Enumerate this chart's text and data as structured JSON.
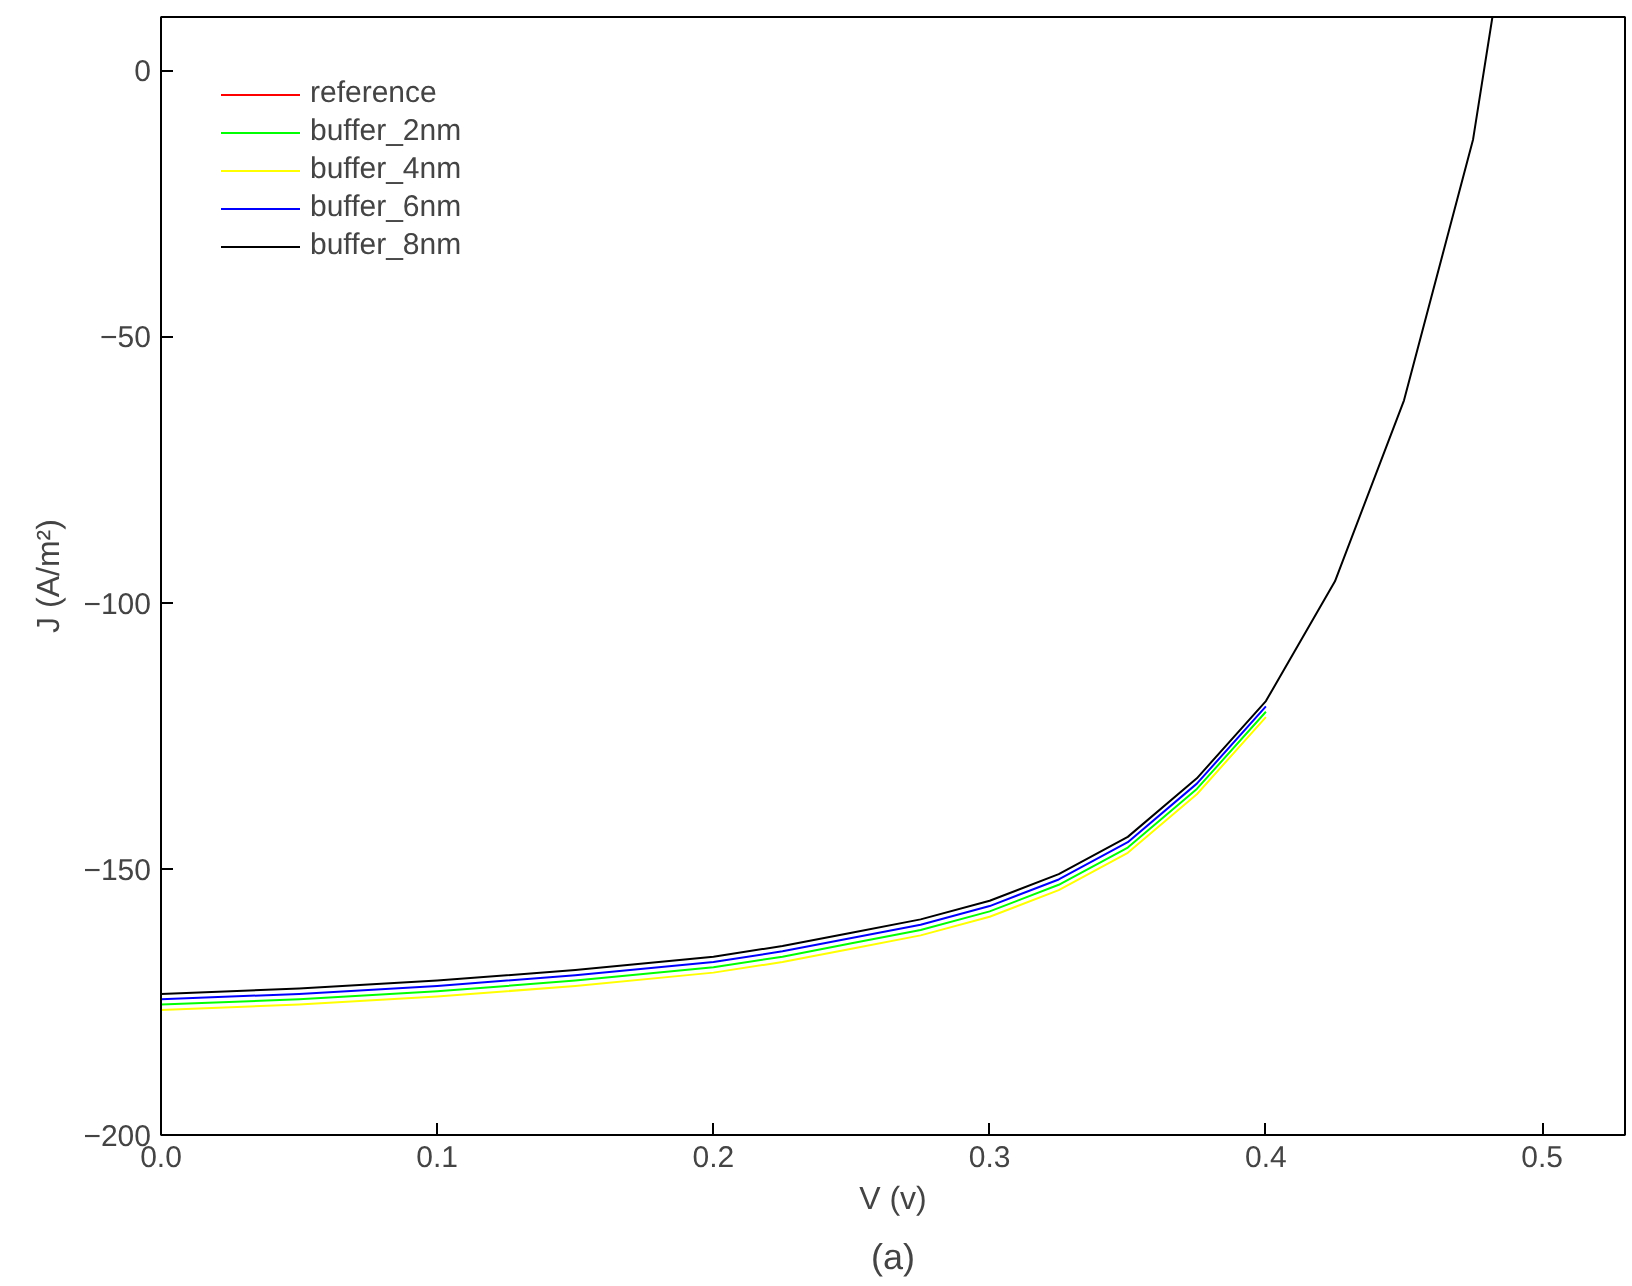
{
  "chart_data": {
    "type": "line",
    "xlabel": "V (v)",
    "ylabel": "J (A/m²)",
    "annotations": [
      "(a)"
    ],
    "x": [
      0,
      0.05,
      0.1,
      0.15,
      0.2,
      0.225,
      0.25,
      0.275,
      0.3,
      0.325,
      0.35,
      0.375,
      0.4,
      0.425,
      0.45,
      0.475,
      0.482
    ],
    "series": [
      {
        "name": "reference",
        "color": "#ff0000",
        "values": [
          null,
          null,
          null,
          null,
          null,
          null,
          null,
          null,
          null,
          null,
          null,
          null,
          null,
          null,
          null,
          null,
          null
        ]
      },
      {
        "name": "buffer_2nm",
        "color": "#00ff00",
        "values": [
          -175.5,
          -174.5,
          -173,
          -171,
          -168.5,
          -166.5,
          -164,
          -161.5,
          -158,
          -153,
          -146,
          -135,
          -120.5,
          null,
          null,
          null,
          null
        ]
      },
      {
        "name": "buffer_4nm",
        "color": "#ffff00",
        "values": [
          -176.5,
          -175.5,
          -174,
          -172,
          -169.5,
          -167.5,
          -165,
          -162.5,
          -159,
          -154,
          -147,
          -136,
          -121.5,
          null,
          null,
          null,
          null
        ]
      },
      {
        "name": "buffer_6nm",
        "color": "#0000ff",
        "values": [
          -174.5,
          -173.5,
          -172,
          -170,
          -167.5,
          -165.5,
          -163,
          -160.5,
          -157,
          -152,
          -145,
          -134,
          -119.5,
          null,
          null,
          null,
          null
        ]
      },
      {
        "name": "buffer_8nm",
        "color": "#000000",
        "values": [
          -173.5,
          -172.5,
          -171,
          -169,
          -166.5,
          -164.5,
          -162,
          -159.5,
          -156,
          -151,
          -144,
          -133,
          -118.5,
          -96,
          -62,
          -13,
          10
        ]
      }
    ],
    "xlim": [
      0,
      0.53
    ],
    "ylim": [
      -200,
      10
    ],
    "xticks": [
      {
        "value": 0,
        "label": "0.0"
      },
      0.1,
      0.2,
      0.3,
      0.4,
      0.5
    ],
    "yticks": [
      -200,
      -150,
      -100,
      -50,
      0
    ],
    "grid": false,
    "legend": "top left",
    "line_style": "solid",
    "marker": "none"
  }
}
